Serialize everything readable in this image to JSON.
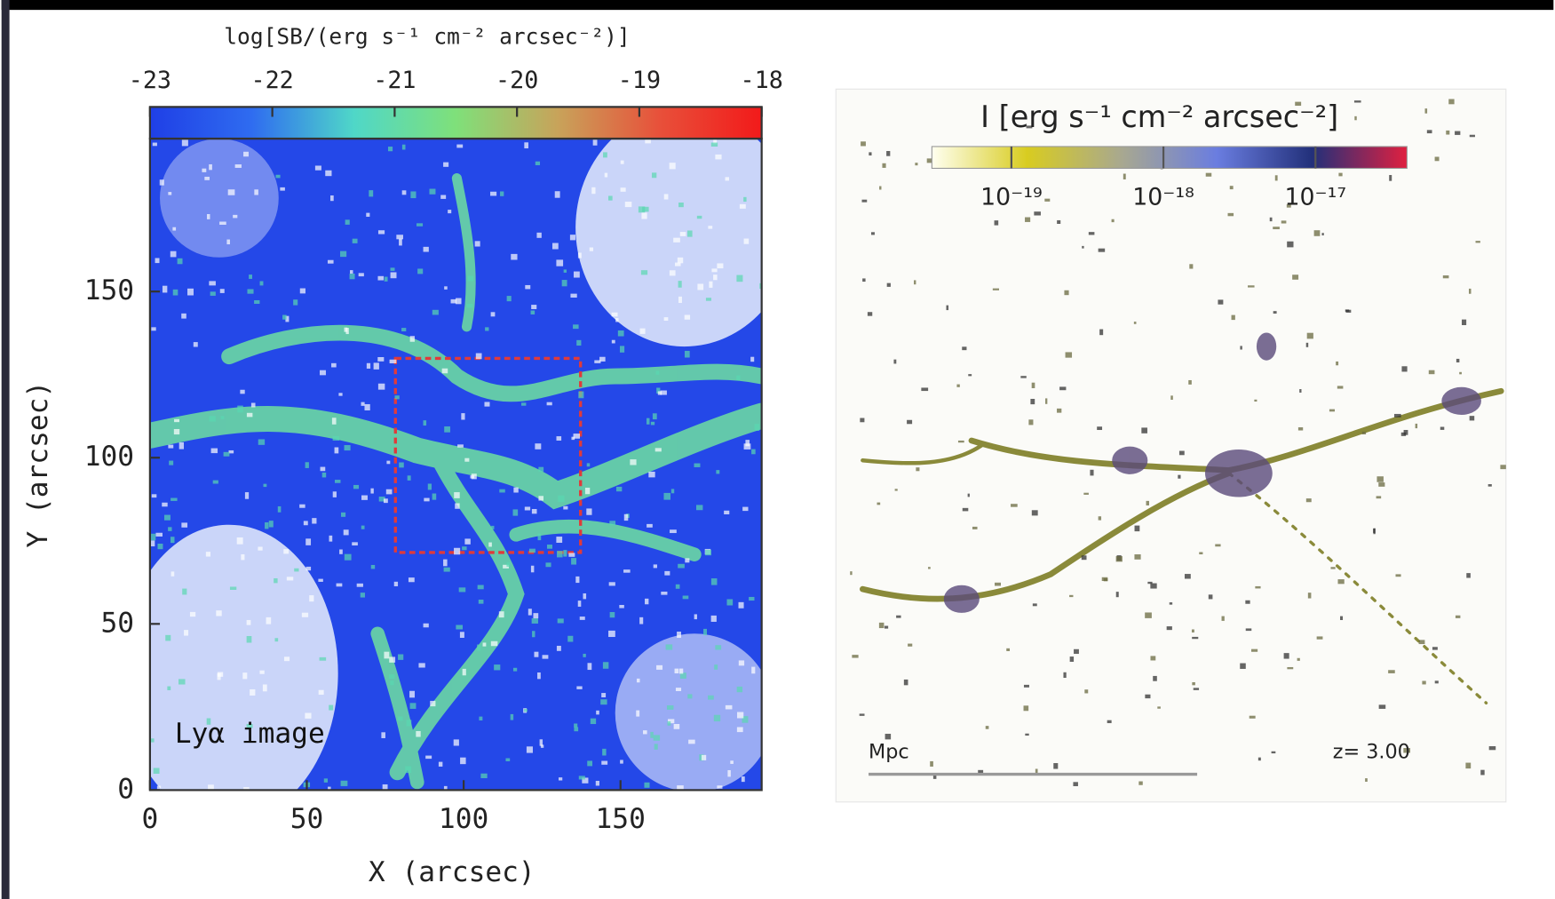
{
  "chart_data": [
    {
      "type": "heatmap",
      "colorbar_label": "log[SB/(erg s⁻¹ cm⁻² arcsec⁻²)]",
      "clim": [
        -23,
        -18
      ],
      "cticks": [
        -23,
        -22,
        -21,
        -20,
        -19,
        -18
      ],
      "colors": [
        "#1f3fe6",
        "#2f6cf0",
        "#4fd7c8",
        "#7fe07a",
        "#c8a35a",
        "#e8503a",
        "#f21a1a"
      ],
      "xlabel": "X (arcsec)",
      "ylabel": "Y (arcsec)",
      "xlim": [
        0,
        195
      ],
      "ylim": [
        0,
        196
      ],
      "xticks": [
        0,
        50,
        100,
        150
      ],
      "yticks": [
        0,
        50,
        100,
        150
      ],
      "annotation": "Lyα image"
    },
    {
      "type": "image",
      "colorbar_label": "I [erg s⁻¹ cm⁻² arcsec⁻²]",
      "log_scale": true,
      "clim": [
        3e-20,
        4e-17
      ],
      "cticks": [
        {
          "value": 1e-19,
          "label": "10⁻¹⁹"
        },
        {
          "value": 1e-18,
          "label": "10⁻¹⁸"
        },
        {
          "value": 1e-17,
          "label": "10⁻¹⁷"
        }
      ],
      "colors": [
        "#fffff0",
        "#d8cc20",
        "#a8a890",
        "#6a7de0",
        "#22307a",
        "#e02040"
      ],
      "annotations": [
        "Mpc",
        "z= 3.00"
      ]
    }
  ]
}
